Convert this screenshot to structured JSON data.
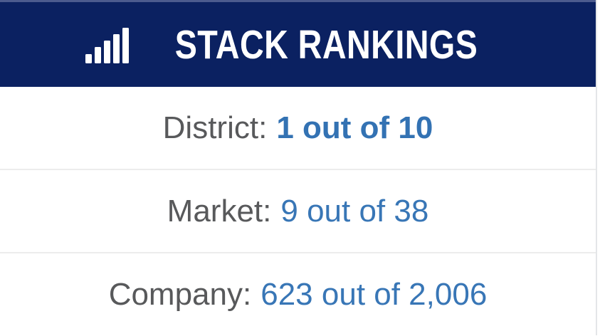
{
  "card": {
    "header": {
      "title": "STACK RANKINGS",
      "icon": "bar-chart-icon"
    },
    "rankings": [
      {
        "label": "District:",
        "value": "1 out of 10"
      },
      {
        "label": "Market:",
        "value": "9 out of 38"
      },
      {
        "label": "Company:",
        "value": "623 out of 2,006"
      }
    ],
    "colors": {
      "header_bg": "#0b2161",
      "header_top_line": "#4c5b8e",
      "title_text": "#ffffff",
      "label_gray": "#58595b",
      "value_blue": "#3876b6",
      "value_blue_bold": "#3372b3",
      "divider": "#ececec",
      "right_border": "#e4e6e8"
    }
  }
}
